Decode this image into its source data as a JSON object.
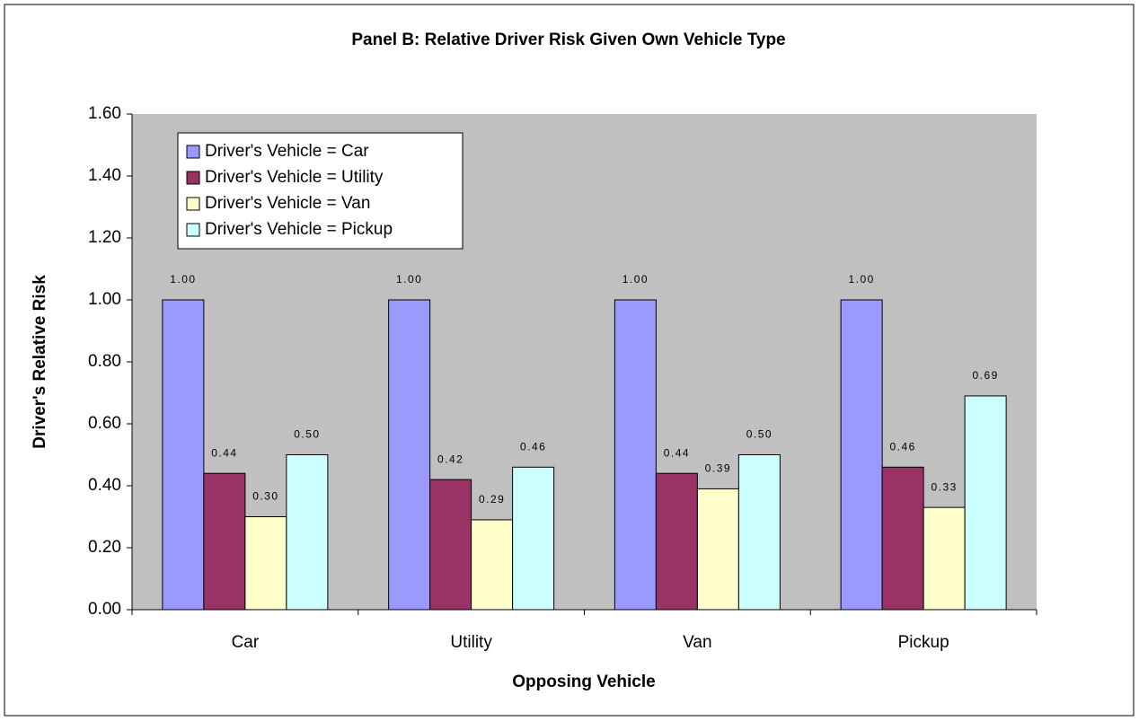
{
  "chart_data": {
    "type": "bar",
    "title": "Panel B: Relative Driver Risk Given Own Vehicle Type",
    "x_label": "Opposing Vehicle",
    "y_label": "Driver's Relative Risk",
    "categories": [
      "Car",
      "Utility",
      "Van",
      "Pickup"
    ],
    "series": [
      {
        "name": "Driver's Vehicle = Car",
        "color": "#9999ff",
        "values": [
          1,
          1,
          1,
          1
        ],
        "value_labels": [
          "1.00",
          "1.00",
          "1.00",
          "1.00"
        ]
      },
      {
        "name": "Driver's Vehicle = Utility",
        "color": "#993366",
        "values": [
          0.44,
          0.42,
          0.44,
          0.46
        ],
        "value_labels": [
          "0.44",
          "0.42",
          "0.44",
          "0.46"
        ]
      },
      {
        "name": "Driver's Vehicle = Van",
        "color": "#ffffcc",
        "values": [
          0.3,
          0.29,
          0.39,
          0.33
        ],
        "value_labels": [
          "0.30",
          "0.29",
          "0.39",
          "0.33"
        ]
      },
      {
        "name": "Driver's Vehicle = Pickup",
        "color": "#ccffff",
        "values": [
          0.5,
          0.46,
          0.5,
          0.69
        ],
        "value_labels": [
          "0.50",
          "0.46",
          "0.50",
          "0.69"
        ]
      }
    ],
    "ylim": [
      0,
      1.6
    ],
    "yticks": [
      {
        "value": 0,
        "label": "0.00"
      },
      {
        "value": 0.2,
        "label": "0.20"
      },
      {
        "value": 0.4,
        "label": "0.40"
      },
      {
        "value": 0.6,
        "label": "0.60"
      },
      {
        "value": 0.8,
        "label": "0.80"
      },
      {
        "value": 1,
        "label": "1.00"
      },
      {
        "value": 1.2,
        "label": "1.20"
      },
      {
        "value": 1.4,
        "label": "1.40"
      },
      {
        "value": 1.6,
        "label": "1.60"
      }
    ],
    "plot_background": "#c0c0c0",
    "legend": "top-left"
  }
}
